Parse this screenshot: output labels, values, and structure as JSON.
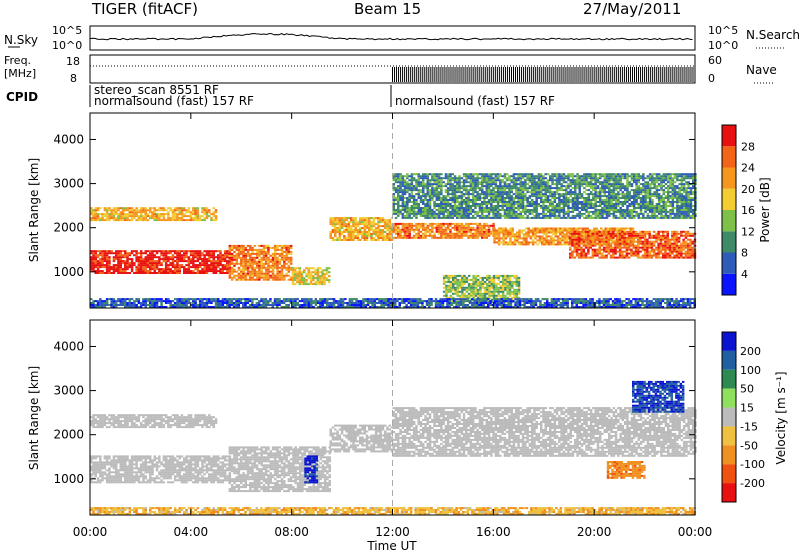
{
  "header": {
    "station": "TIGER (fitACF)",
    "beam": "Beam 15",
    "date": "27/May/2011"
  },
  "summary_panels": {
    "nsky_label": "N.Sky",
    "nsearch_label": "N.Search",
    "noise_ticks_left": [
      "10^5",
      "10^0"
    ],
    "noise_ticks_right": [
      "10^5",
      "10^0"
    ],
    "freq_label_1": "Freq.",
    "freq_label_2": "[MHz]",
    "freq_ticks": [
      "18",
      "8"
    ],
    "nave_label": "Nave",
    "nave_ticks": [
      "60",
      "0"
    ],
    "cpid_label": "CPID",
    "cpid_entries_left": [
      "stereo_scan 8551 RF",
      "normalsound (fast) 157 RF"
    ],
    "cpid_entries_right": [
      "normalsound (fast) 157 RF"
    ]
  },
  "chart_data": [
    {
      "type": "heatmap",
      "title": "",
      "xlabel": "Time UT",
      "ylabel": "Slant Range [km]",
      "x_ticks": [
        "00:00",
        "04:00",
        "08:00",
        "12:00",
        "16:00",
        "20:00",
        "00:00"
      ],
      "xlim_hours": [
        0,
        24
      ],
      "y_ticks": [
        1000,
        2000,
        3000,
        4000
      ],
      "ylim": [
        180,
        4600
      ],
      "colorbar_label": "Power [dB]",
      "colorbar_ticks": [
        4,
        8,
        12,
        16,
        20,
        24,
        28
      ],
      "colorbar_range": [
        0,
        32
      ],
      "colorbar_colors": [
        "#0a14ff",
        "#2e5cb8",
        "#3f8a68",
        "#7dc04a",
        "#f2cc30",
        "#f5961e",
        "#f26418",
        "#e81010"
      ],
      "bands": [
        {
          "t": [
            0.0,
            5.5
          ],
          "r": [
            950,
            1450
          ],
          "power": 30
        },
        {
          "t": [
            0.0,
            5.0
          ],
          "r": [
            2150,
            2450
          ],
          "power": 20
        },
        {
          "t": [
            5.5,
            8.0
          ],
          "r": [
            800,
            1600
          ],
          "power": 24
        },
        {
          "t": [
            8.0,
            9.5
          ],
          "r": [
            700,
            1100
          ],
          "power": 18
        },
        {
          "t": [
            9.5,
            12.0
          ],
          "r": [
            1700,
            2200
          ],
          "power": 20
        },
        {
          "t": [
            12.0,
            16.0
          ],
          "r": [
            1750,
            2100
          ],
          "power": 24
        },
        {
          "t": [
            14.0,
            17.0
          ],
          "r": [
            300,
            900
          ],
          "power": 14
        },
        {
          "t": [
            16.0,
            21.5
          ],
          "r": [
            1600,
            2000
          ],
          "power": 22
        },
        {
          "t": [
            19.0,
            24.0
          ],
          "r": [
            1300,
            1900
          ],
          "power": 26
        },
        {
          "t": [
            12.0,
            24.0
          ],
          "r": [
            2200,
            3200
          ],
          "power": 10
        },
        {
          "t": [
            0.0,
            24.0
          ],
          "r": [
            180,
            400
          ],
          "power": 6
        }
      ]
    },
    {
      "type": "heatmap",
      "title": "",
      "xlabel": "Time UT",
      "ylabel": "Slant Range [km]",
      "x_ticks": [
        "00:00",
        "04:00",
        "08:00",
        "12:00",
        "16:00",
        "20:00",
        "00:00"
      ],
      "xlim_hours": [
        0,
        24
      ],
      "y_ticks": [
        1000,
        2000,
        3000,
        4000
      ],
      "ylim": [
        180,
        4600
      ],
      "colorbar_label": "Velocity [m s⁻¹]",
      "colorbar_ticks": [
        "200",
        "100",
        "50",
        "15",
        "-15",
        "-50",
        "-100",
        "-200"
      ],
      "colorbar_colors": [
        "#0a14d0",
        "#2060a0",
        "#2e8a50",
        "#90e060",
        "#bbbbbb",
        "#f0c040",
        "#f09020",
        "#f05010",
        "#e81010"
      ],
      "bands": [
        {
          "t": [
            0.0,
            5.5
          ],
          "r": [
            900,
            1500
          ],
          "vel": 0
        },
        {
          "t": [
            0.0,
            5.0
          ],
          "r": [
            2150,
            2450
          ],
          "vel": 0
        },
        {
          "t": [
            5.5,
            9.5
          ],
          "r": [
            700,
            1700
          ],
          "vel": 0
        },
        {
          "t": [
            8.5,
            9.0
          ],
          "r": [
            900,
            1500
          ],
          "vel": 220
        },
        {
          "t": [
            9.5,
            12.0
          ],
          "r": [
            1600,
            2200
          ],
          "vel": 0
        },
        {
          "t": [
            12.0,
            24.0
          ],
          "r": [
            1500,
            2600
          ],
          "vel": 0
        },
        {
          "t": [
            20.5,
            22.0
          ],
          "r": [
            1000,
            1400
          ],
          "vel": -80
        },
        {
          "t": [
            21.5,
            23.5
          ],
          "r": [
            2500,
            3200
          ],
          "vel": 200
        },
        {
          "t": [
            0.0,
            24.0
          ],
          "r": [
            180,
            350
          ],
          "vel": -40
        }
      ]
    }
  ]
}
